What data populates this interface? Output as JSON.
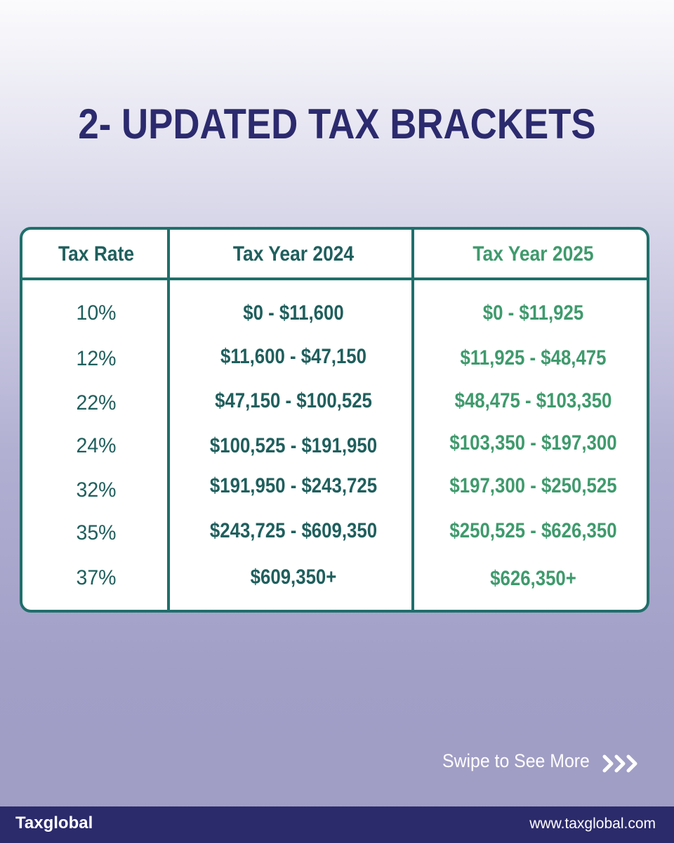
{
  "title": "2- UPDATED TAX BRACKETS",
  "table": {
    "headers": {
      "rate": "Tax Rate",
      "year2024": "Tax Year 2024",
      "year2025": "Tax Year 2025"
    },
    "rows": [
      {
        "rate": "10%",
        "y2024": "$0 - $11,600",
        "y2025": "$0 - $11,925"
      },
      {
        "rate": "12%",
        "y2024": "$11,600 - $47,150",
        "y2025": "$11,925 - $48,475"
      },
      {
        "rate": "22%",
        "y2024": "$47,150 - $100,525",
        "y2025": "$48,475 - $103,350"
      },
      {
        "rate": "24%",
        "y2024": "$100,525 - $191,950",
        "y2025": "$103,350 - $197,300"
      },
      {
        "rate": "32%",
        "y2024": "$191,950 - $243,725",
        "y2025": "$197,300 - $250,525"
      },
      {
        "rate": "35%",
        "y2024": "$243,725 - $609,350",
        "y2025": "$250,525 - $626,350"
      },
      {
        "rate": "37%",
        "y2024": "$609,350+",
        "y2025": "$626,350+"
      }
    ]
  },
  "swipe_text": "Swipe to See More",
  "footer": {
    "logo": "Taxglobal",
    "website": "www.taxglobal.com"
  },
  "colors": {
    "title": "#2c2a6e",
    "table_border": "#1f6f6b",
    "text_2024": "#1f5f5d",
    "text_2025": "#3f9a6d",
    "footer_bg": "#2b2a6b"
  },
  "icons": {
    "swipe": "triple-chevron-right-icon"
  }
}
